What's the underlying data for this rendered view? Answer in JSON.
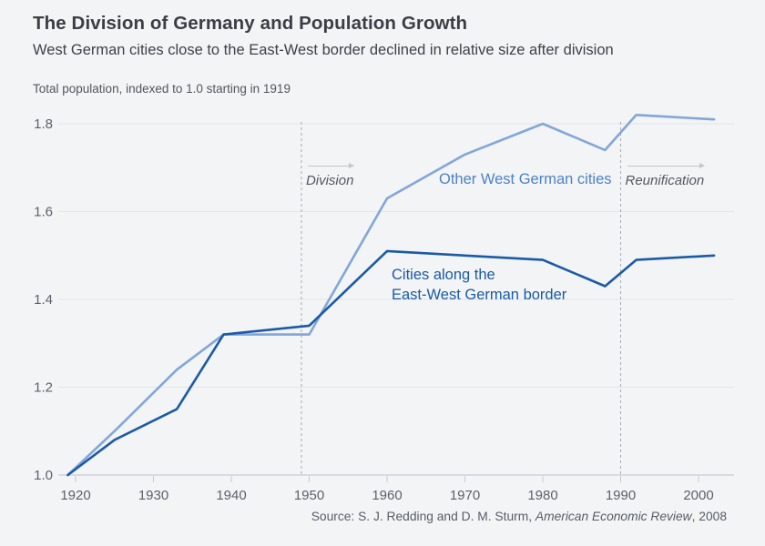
{
  "header": {
    "title": "The Division of Germany and Population Growth",
    "subtitle": "West German cities close to the East-West border declined in relative size after division"
  },
  "chart_data": {
    "type": "line",
    "title": "The Division of Germany and Population Growth",
    "subtitle": "West German cities close to the East-West border declined in relative size after division",
    "unit_label": "Total population, indexed to 1.0 starting in 1919",
    "x": [
      1919,
      1925,
      1933,
      1939,
      1950,
      1960,
      1970,
      1980,
      1988,
      1992,
      2002
    ],
    "series": [
      {
        "name": "Other West German cities",
        "color": "#82a6d8",
        "label_color": "#4e82c6",
        "values": [
          1.0,
          1.1,
          1.24,
          1.32,
          1.32,
          1.63,
          1.73,
          1.8,
          1.74,
          1.82,
          1.81
        ]
      },
      {
        "name": "Cities along the East-West German border",
        "color": "#1b5aa5",
        "label_color": "#1b5aa5",
        "values": [
          1.0,
          1.08,
          1.15,
          1.32,
          1.34,
          1.51,
          1.5,
          1.49,
          1.43,
          1.49,
          1.5
        ]
      }
    ],
    "series_labels": [
      {
        "lines": [
          "Other West German cities"
        ]
      },
      {
        "lines": [
          "Cities along the",
          "East-West German border"
        ]
      }
    ],
    "xticks": [
      1920,
      1930,
      1940,
      1950,
      1960,
      1970,
      1980,
      1990,
      2000
    ],
    "yticks": [
      "1.0",
      "1.2",
      "1.4",
      "1.6",
      "1.8"
    ],
    "ylim": [
      1.0,
      1.85
    ],
    "xlim": [
      1919,
      2004
    ],
    "grid": "horizontal",
    "legend_position": "inline-labels",
    "events": [
      {
        "year": 1949,
        "label": "Division"
      },
      {
        "year": 1990,
        "label": "Reunification"
      }
    ]
  },
  "colors": {
    "background": "#f2f4f6",
    "gridline": "#e3e6ea",
    "axis": "#c7cbd1",
    "tick_text": "#5d6167",
    "event_line": "#a6aab1"
  },
  "source": {
    "prefix": "Source: S. J. Redding and D. M. Sturm, ",
    "journal": "American Economic Review",
    "suffix": ", 2008"
  }
}
